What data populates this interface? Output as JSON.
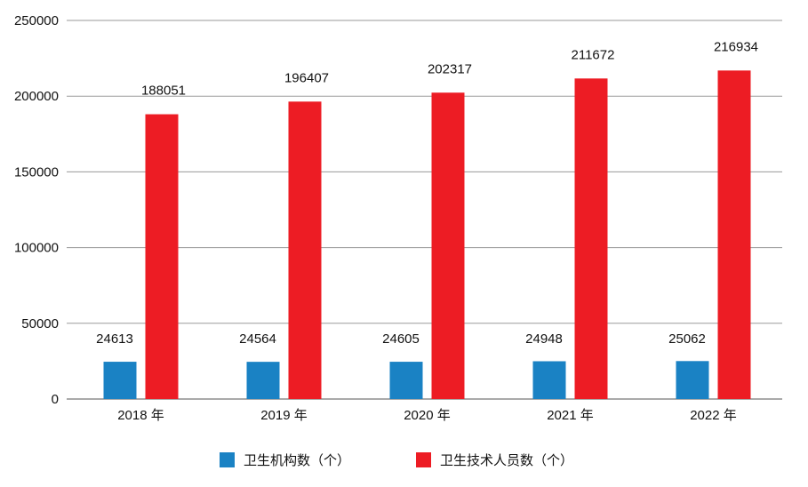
{
  "chart_data": {
    "type": "bar",
    "categories": [
      "2018 年",
      "2019 年",
      "2020 年",
      "2021 年",
      "2022 年"
    ],
    "series": [
      {
        "name": "卫生机构数（个）",
        "values": [
          24613,
          24564,
          24605,
          24948,
          25062
        ],
        "color": "#1a82c4"
      },
      {
        "name": "卫生技术人员数（个）",
        "values": [
          188051,
          196407,
          202317,
          211672,
          216934
        ],
        "color": "#ed1c24"
      }
    ],
    "ylim": [
      0,
      250000
    ],
    "yticks": [
      0,
      50000,
      100000,
      150000,
      200000,
      250000
    ],
    "grid": true,
    "legend_position": "bottom"
  }
}
